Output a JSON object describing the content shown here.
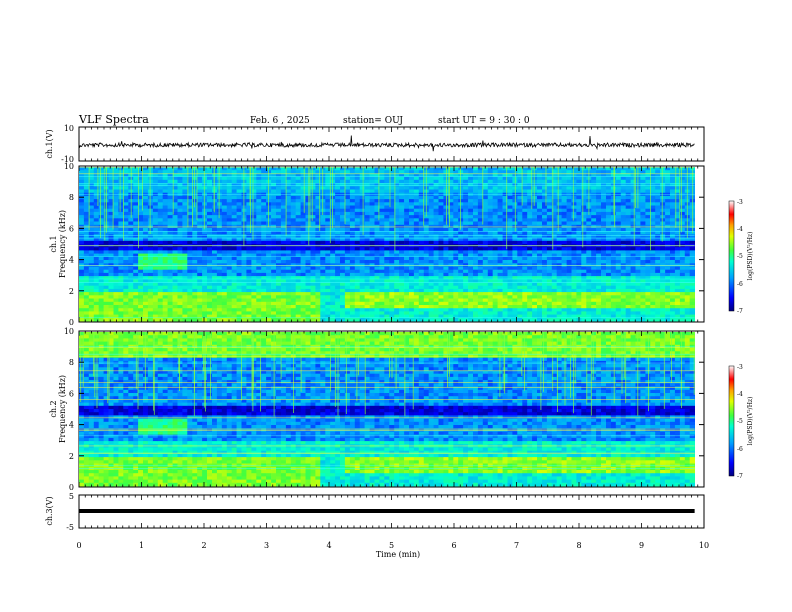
{
  "header": {
    "title": "VLF Spectra",
    "date": "Feb. 6 , 2025",
    "station": "station= OUJ",
    "start": "start UT = 9 : 30 : 0"
  },
  "colors": {
    "spectrogram_colormap": [
      "#00007f",
      "#0000ff",
      "#00a0ff",
      "#00ffd0",
      "#40ff40",
      "#e0ff00",
      "#ffa000",
      "#ff0000",
      "#ffffff"
    ],
    "trace": "#000000"
  },
  "chart_data": [
    {
      "type": "line",
      "name": "ch.1 waveform",
      "ylabel": "ch.1(V)",
      "ylim": [
        -10,
        10
      ],
      "yticks": [
        "10",
        "-10"
      ],
      "x": [
        0,
        10
      ],
      "level": 0
    },
    {
      "type": "heatmap",
      "ylabel_line1": "ch.1",
      "ylabel_line2": "Frequency (kHz)",
      "ylim": [
        0,
        10
      ],
      "yticks": [
        "0",
        "2",
        "4",
        "6",
        "8",
        "10"
      ],
      "xlim": [
        0,
        9.85
      ],
      "colorbar": {
        "label": "log(PSD)(V²/Hz)",
        "range": [
          -7,
          -3
        ],
        "ticks": [
          "-3",
          "-4",
          "-5",
          "-6",
          "-7"
        ]
      }
    },
    {
      "type": "heatmap",
      "ylabel_line1": "ch.2",
      "ylabel_line2": "Frequency (kHz)",
      "ylim": [
        0,
        10
      ],
      "yticks": [
        "0",
        "2",
        "4",
        "6",
        "8",
        "10"
      ],
      "xlim": [
        0,
        9.85
      ],
      "colorbar": {
        "label": "log(PSD)(V²/Hz)",
        "range": [
          -7,
          -3
        ],
        "ticks": [
          "-3",
          "-4",
          "-5",
          "-6",
          "-7"
        ]
      }
    },
    {
      "type": "line",
      "name": "ch.3 waveform",
      "ylabel": "ch.3(V)",
      "ylim": [
        -5,
        5
      ],
      "yticks": [
        "5",
        "-5"
      ],
      "level": -1
    }
  ],
  "xaxis": {
    "label": "Time (min)",
    "ticks": [
      "0",
      "1",
      "2",
      "3",
      "4",
      "5",
      "6",
      "7",
      "8",
      "9",
      "10"
    ],
    "range": [
      0,
      10
    ]
  }
}
